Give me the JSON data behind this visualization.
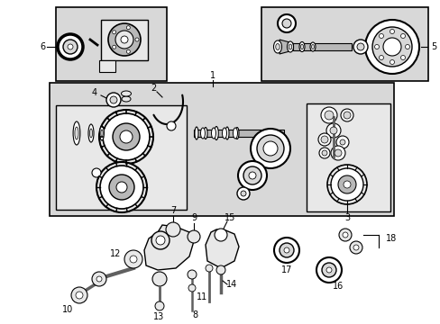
{
  "bg_color": "#ffffff",
  "fig_width": 4.89,
  "fig_height": 3.6,
  "dpi": 100,
  "gray_bg": "#d8d8d8",
  "light_gray": "#e8e8e8",
  "mid_gray": "#b8b8b8",
  "dark_gray": "#606060",
  "lfs": 6.5
}
